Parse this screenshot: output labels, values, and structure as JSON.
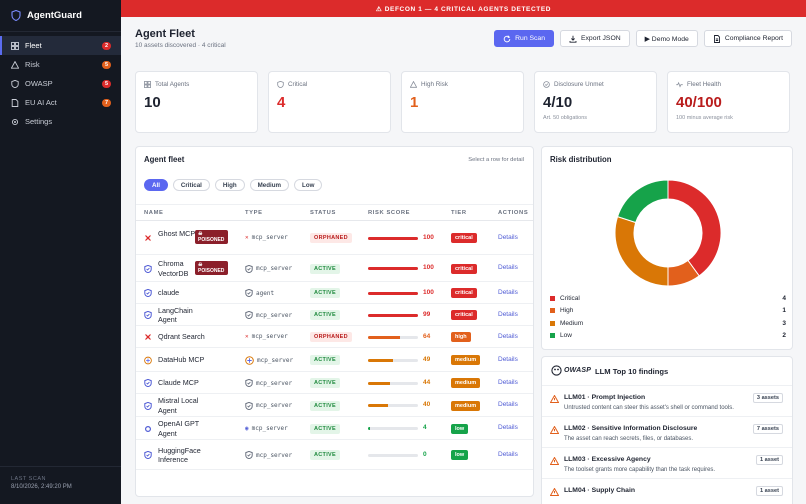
{
  "app": {
    "name": "AgentGuard"
  },
  "sidebar": {
    "items": [
      {
        "label": "Fleet",
        "badge": "2",
        "badge_color": "#dc2b2b",
        "icon": "grid-icon"
      },
      {
        "label": "Risk",
        "badge": "5",
        "badge_color": "#e2601c",
        "icon": "warning-icon"
      },
      {
        "label": "OWASP",
        "badge": "5",
        "badge_color": "#dc2b2b",
        "icon": "shield-icon"
      },
      {
        "label": "EU AI Act",
        "badge": "7",
        "badge_color": "#e2601c",
        "icon": "document-icon"
      },
      {
        "label": "Settings",
        "badge": "",
        "icon": "gear-icon"
      }
    ],
    "footer": {
      "label": "LAST SCAN",
      "time": "8/10/2026, 2:49:20 PM"
    }
  },
  "alert": {
    "text": "⚠ DEFCON 1 — 4 CRITICAL AGENTS DETECTED"
  },
  "header": {
    "title": "Agent Fleet",
    "subtitle": "10 assets discovered · 4 critical",
    "buttons": {
      "run_scan": "Run Scan",
      "export": "Export JSON",
      "demo": "▶ Demo Mode",
      "compliance": "Compliance Report"
    }
  },
  "stats": [
    {
      "label": "Total Agents",
      "value": "10",
      "hint": "",
      "color": "#1e2330",
      "icon": "grid-icon"
    },
    {
      "label": "Critical",
      "value": "4",
      "hint": "",
      "color": "#dc2b2b",
      "icon": "shield-icon"
    },
    {
      "label": "High Risk",
      "value": "1",
      "hint": "",
      "color": "#e2601c",
      "icon": "warning-icon"
    },
    {
      "label": "Disclosure Unmet",
      "value": "4/10",
      "hint": "Art. 50 obligations",
      "color": "#1e2330",
      "icon": "check-circle-icon"
    },
    {
      "label": "Fleet Health",
      "value": "40/100",
      "hint": "100 minus average risk",
      "color": "#b91c1c",
      "icon": "pulse-icon"
    }
  ],
  "fleet": {
    "title": "Agent fleet",
    "hint": "Select a row for detail",
    "filters": [
      "All",
      "Critical",
      "High",
      "Medium",
      "Low"
    ],
    "columns": {
      "name": "NAME",
      "type": "TYPE",
      "status": "STATUS",
      "risk": "RISK SCORE",
      "tier": "TIER",
      "actions": "ACTIONS"
    },
    "rows": [
      {
        "name": "Ghost MCP",
        "poisoned": "☠ POISONED",
        "type": "mcp_server",
        "type_icon": "skull",
        "status": "ORPHANED",
        "score": 100,
        "tier": "critical",
        "action": "Details"
      },
      {
        "name": "Chroma VectorDB",
        "poisoned": "☠ POISONED",
        "type": "mcp_server",
        "type_icon": "shield",
        "status": "ACTIVE",
        "score": 100,
        "tier": "critical",
        "action": "Details"
      },
      {
        "name": "claude",
        "poisoned": "",
        "type": "agent",
        "type_icon": "shield",
        "status": "ACTIVE",
        "score": 100,
        "tier": "critical",
        "action": "Details"
      },
      {
        "name": "LangChain Agent",
        "poisoned": "",
        "type": "mcp_server",
        "type_icon": "shield",
        "status": "ACTIVE",
        "score": 99,
        "tier": "critical",
        "action": "Details"
      },
      {
        "name": "Qdrant Search",
        "poisoned": "",
        "type": "mcp_server",
        "type_icon": "skull",
        "status": "ORPHANED",
        "score": 64,
        "tier": "high",
        "action": "Details"
      },
      {
        "name": "DataHub MCP",
        "poisoned": "",
        "type": "mcp_server",
        "type_icon": "logo",
        "status": "ACTIVE",
        "score": 49,
        "tier": "medium",
        "action": "Details"
      },
      {
        "name": "Claude MCP",
        "poisoned": "",
        "type": "mcp_server",
        "type_icon": "shield",
        "status": "ACTIVE",
        "score": 44,
        "tier": "medium",
        "action": "Details"
      },
      {
        "name": "Mistral Local Agent",
        "poisoned": "",
        "type": "mcp_server",
        "type_icon": "shield",
        "status": "ACTIVE",
        "score": 40,
        "tier": "medium",
        "action": "Details"
      },
      {
        "name": "OpenAI GPT Agent",
        "poisoned": "",
        "type": "mcp_server",
        "type_icon": "dot",
        "status": "ACTIVE",
        "score": 4,
        "tier": "low",
        "action": "Details"
      },
      {
        "name": "HuggingFace Inference",
        "poisoned": "",
        "type": "mcp_server",
        "type_icon": "shield",
        "status": "ACTIVE",
        "score": 0,
        "tier": "low",
        "action": "Details"
      }
    ]
  },
  "risk": {
    "title": "Risk distribution",
    "segments": [
      {
        "label": "Critical",
        "value": 4,
        "color": "#dc2b2b"
      },
      {
        "label": "High",
        "value": 1,
        "color": "#e2601c"
      },
      {
        "label": "Medium",
        "value": 3,
        "color": "#d97706"
      },
      {
        "label": "Low",
        "value": 2,
        "color": "#16a34a"
      }
    ]
  },
  "owasp": {
    "title": "LLM Top 10 findings",
    "logo": "OWASP",
    "findings": [
      {
        "title": "LLM01 · Prompt Injection",
        "desc": "Untrusted content can steer this asset's shell or command tools.",
        "assets": "3 assets"
      },
      {
        "title": "LLM02 · Sensitive Information Disclosure",
        "desc": "The asset can reach secrets, files, or databases.",
        "assets": "7 assets"
      },
      {
        "title": "LLM03 · Excessive Agency",
        "desc": "The toolset grants more capability than the task requires.",
        "assets": "1 asset"
      },
      {
        "title": "LLM04 · Supply Chain",
        "desc": "",
        "assets": "1 asset"
      }
    ]
  },
  "colors": {
    "accent": "#5b67f0",
    "critical": "#dc2b2b",
    "high": "#e2601c",
    "medium": "#d97706",
    "low": "#16a34a"
  }
}
